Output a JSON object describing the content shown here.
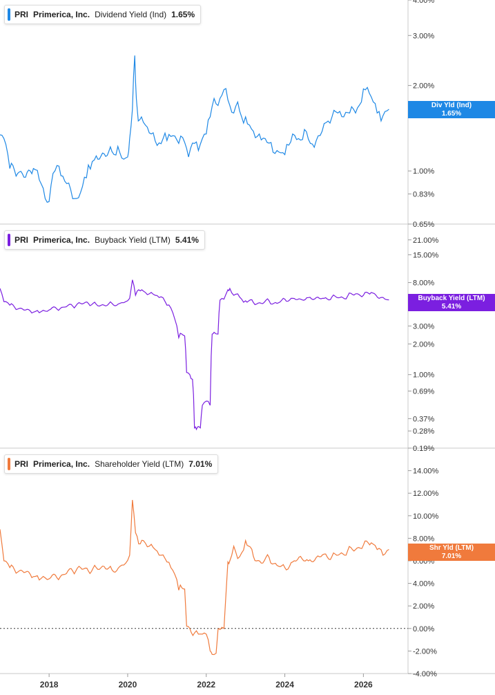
{
  "chart_data": [
    {
      "type": "line",
      "legend": {
        "ticker": "PRI",
        "company": "Primerica, Inc.",
        "metric": "Dividend Yield (Ind)",
        "value": "1.65%"
      },
      "tag": {
        "label": "Div Yld (Ind)",
        "value": "1.65%"
      },
      "color": "#1e88e5",
      "y_scale": "log",
      "y_ticks": [
        "4.00%",
        "3.00%",
        "2.00%",
        "1.00%",
        "0.83%",
        "0.65%"
      ],
      "x": [
        2016.75,
        2016.85,
        2017.0,
        2017.2,
        2017.4,
        2017.6,
        2017.75,
        2017.9,
        2018.0,
        2018.1,
        2018.25,
        2018.4,
        2018.55,
        2018.7,
        2018.8,
        2018.9,
        2019.0,
        2019.1,
        2019.2,
        2019.4,
        2019.6,
        2019.75,
        2019.9,
        2020.0,
        2020.05,
        2020.12,
        2020.18,
        2020.22,
        2020.27,
        2020.35,
        2020.45,
        2020.6,
        2020.75,
        2020.9,
        2021.0,
        2021.15,
        2021.3,
        2021.45,
        2021.55,
        2021.7,
        2021.8,
        2021.9,
        2022.0,
        2022.1,
        2022.2,
        2022.3,
        2022.4,
        2022.5,
        2022.6,
        2022.7,
        2022.8,
        2022.9,
        2023.0,
        2023.1,
        2023.2,
        2023.35,
        2023.5,
        2023.65,
        2023.8,
        2023.95,
        2024.05,
        2024.2,
        2024.35,
        2024.5,
        2024.65,
        2024.8,
        2024.95,
        2025.05,
        2025.2,
        2025.35,
        2025.5,
        2025.65,
        2025.8,
        2025.95,
        2026.05,
        2026.15,
        2026.25,
        2026.35,
        2026.45,
        2026.55,
        2026.65
      ],
      "values": [
        1.34,
        1.3,
        1.02,
        0.98,
        0.95,
        1.02,
        0.93,
        0.8,
        0.78,
        0.98,
        1.04,
        0.92,
        0.86,
        0.8,
        0.84,
        0.95,
        1.05,
        1.08,
        1.13,
        1.15,
        1.17,
        1.22,
        1.1,
        1.12,
        1.3,
        1.65,
        2.55,
        1.8,
        1.5,
        1.55,
        1.45,
        1.35,
        1.23,
        1.3,
        1.28,
        1.33,
        1.25,
        1.26,
        1.12,
        1.25,
        1.18,
        1.3,
        1.35,
        1.55,
        1.8,
        1.7,
        1.85,
        1.95,
        1.7,
        1.6,
        1.75,
        1.55,
        1.55,
        1.45,
        1.38,
        1.35,
        1.3,
        1.26,
        1.18,
        1.16,
        1.24,
        1.35,
        1.3,
        1.4,
        1.25,
        1.28,
        1.38,
        1.48,
        1.55,
        1.6,
        1.55,
        1.6,
        1.6,
        1.75,
        1.93,
        1.88,
        1.75,
        1.6,
        1.5,
        1.62,
        1.65
      ],
      "ylim": [
        0.65,
        4.0
      ]
    },
    {
      "type": "line",
      "legend": {
        "ticker": "PRI",
        "company": "Primerica, Inc.",
        "metric": "Buyback Yield (LTM)",
        "value": "5.41%"
      },
      "tag": {
        "label": "Buyback Yield (LTM)",
        "value": "5.41%"
      },
      "color": "#7b1fe0",
      "y_scale": "log",
      "y_ticks": [
        "21.00%",
        "15.00%",
        "8.00%",
        "3.00%",
        "2.00%",
        "1.00%",
        "0.69%",
        "0.37%",
        "0.28%",
        "0.19%"
      ],
      "x": [
        2016.75,
        2016.85,
        2017.0,
        2017.2,
        2017.4,
        2017.6,
        2017.75,
        2017.9,
        2018.0,
        2018.2,
        2018.4,
        2018.6,
        2018.8,
        2019.0,
        2019.2,
        2019.4,
        2019.6,
        2019.8,
        2019.95,
        2020.05,
        2020.12,
        2020.2,
        2020.28,
        2020.4,
        2020.55,
        2020.7,
        2020.85,
        2021.0,
        2021.1,
        2021.2,
        2021.3,
        2021.38,
        2021.45,
        2021.5,
        2021.58,
        2021.65,
        2021.7,
        2021.75,
        2021.8,
        2021.85,
        2021.9,
        2022.0,
        2022.1,
        2022.15,
        2022.2,
        2022.3,
        2022.35,
        2022.45,
        2022.55,
        2022.6,
        2022.7,
        2022.8,
        2022.9,
        2023.0,
        2023.2,
        2023.4,
        2023.6,
        2023.8,
        2024.0,
        2024.2,
        2024.4,
        2024.6,
        2024.8,
        2025.0,
        2025.2,
        2025.4,
        2025.6,
        2025.8,
        2026.0,
        2026.2,
        2026.4,
        2026.55,
        2026.65
      ],
      "values": [
        7.0,
        5.2,
        4.8,
        4.4,
        4.3,
        4.1,
        4.05,
        4.2,
        4.3,
        4.4,
        4.6,
        4.7,
        5.0,
        5.0,
        4.9,
        4.8,
        5.0,
        5.0,
        5.2,
        5.6,
        8.5,
        6.0,
        6.8,
        6.6,
        6.2,
        6.0,
        5.8,
        4.8,
        4.5,
        3.5,
        2.3,
        2.5,
        2.4,
        1.05,
        1.0,
        0.9,
        0.3,
        0.29,
        0.31,
        0.3,
        0.5,
        0.55,
        0.5,
        2.5,
        2.6,
        2.5,
        5.4,
        5.5,
        6.8,
        7.0,
        6.0,
        6.2,
        5.5,
        5.3,
        5.1,
        5.0,
        5.3,
        5.0,
        5.5,
        5.6,
        5.5,
        5.7,
        5.7,
        5.6,
        5.8,
        5.7,
        5.9,
        6.2,
        6.0,
        6.4,
        5.6,
        5.5,
        5.41
      ],
      "ylim": [
        0.19,
        30
      ]
    },
    {
      "type": "line",
      "legend": {
        "ticker": "PRI",
        "company": "Primerica, Inc.",
        "metric": "Shareholder Yield (LTM)",
        "value": "7.01%"
      },
      "tag": {
        "label": "Shr Yld (LTM)",
        "value": "7.01%"
      },
      "color": "#f07a3c",
      "y_scale": "linear",
      "y_ticks": [
        "14.00%",
        "12.00%",
        "10.00%",
        "8.00%",
        "6.00%",
        "4.00%",
        "2.00%",
        "0.00%",
        "-2.00%",
        "-4.00%"
      ],
      "y_tick_values": [
        14,
        12,
        10,
        8,
        6,
        4,
        2,
        0,
        -2,
        -4
      ],
      "x": [
        2016.75,
        2016.85,
        2017.0,
        2017.2,
        2017.4,
        2017.6,
        2017.75,
        2017.9,
        2018.0,
        2018.2,
        2018.4,
        2018.6,
        2018.8,
        2019.0,
        2019.2,
        2019.4,
        2019.6,
        2019.8,
        2019.95,
        2020.05,
        2020.12,
        2020.2,
        2020.28,
        2020.4,
        2020.55,
        2020.7,
        2020.85,
        2021.0,
        2021.1,
        2021.2,
        2021.3,
        2021.38,
        2021.45,
        2021.5,
        2021.58,
        2021.7,
        2021.8,
        2021.9,
        2022.0,
        2022.1,
        2022.15,
        2022.25,
        2022.3,
        2022.35,
        2022.45,
        2022.55,
        2022.6,
        2022.7,
        2022.8,
        2022.9,
        2023.0,
        2023.2,
        2023.4,
        2023.6,
        2023.8,
        2024.0,
        2024.2,
        2024.4,
        2024.6,
        2024.8,
        2025.0,
        2025.2,
        2025.4,
        2025.6,
        2025.8,
        2026.0,
        2026.2,
        2026.35,
        2026.5,
        2026.65
      ],
      "values": [
        8.8,
        6.0,
        5.4,
        5.0,
        5.0,
        4.6,
        4.3,
        4.5,
        4.4,
        4.5,
        4.8,
        5.1,
        5.4,
        5.1,
        5.4,
        5.5,
        5.2,
        5.5,
        5.8,
        6.5,
        11.4,
        8.5,
        7.5,
        7.8,
        7.3,
        7.0,
        6.5,
        5.9,
        5.4,
        4.8,
        3.4,
        3.6,
        3.5,
        0.2,
        0.0,
        -0.4,
        -0.5,
        -0.5,
        -0.5,
        -2.0,
        -2.3,
        -2.2,
        -0.1,
        -0.1,
        0.0,
        5.9,
        6.0,
        7.3,
        6.2,
        6.7,
        7.8,
        6.4,
        5.8,
        6.3,
        5.6,
        5.4,
        5.9,
        6.4,
        6.0,
        6.3,
        6.6,
        6.4,
        6.6,
        6.9,
        7.0,
        7.4,
        7.6,
        7.0,
        6.5,
        7.01
      ],
      "ylim": [
        -4.0,
        16.0
      ],
      "reference_line": 0
    }
  ],
  "x_axis": {
    "ticks": [
      "2018",
      "2020",
      "2022",
      "2024",
      "2026"
    ],
    "tick_values": [
      2018,
      2020,
      2022,
      2024,
      2026
    ],
    "range": [
      2016.75,
      2026.85
    ]
  }
}
